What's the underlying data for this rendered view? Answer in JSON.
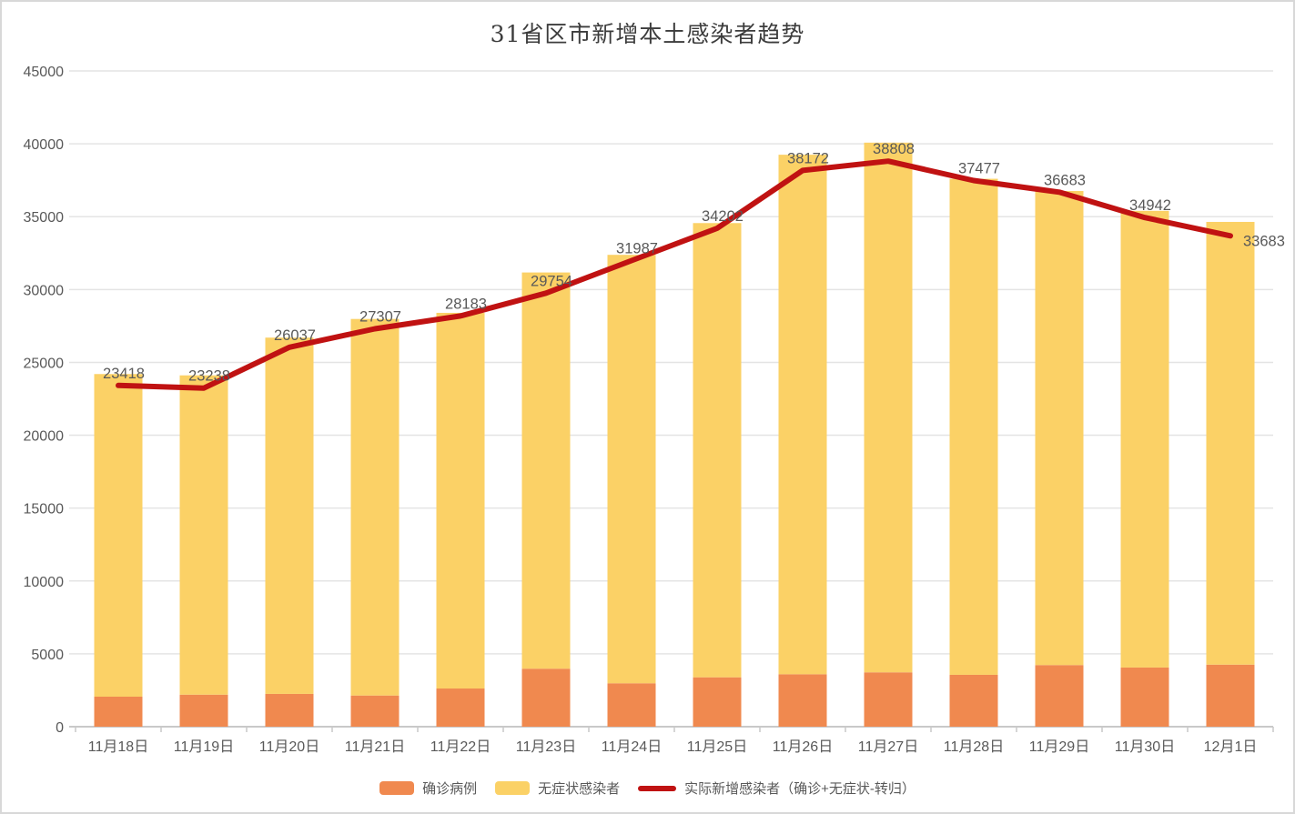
{
  "chart_data": {
    "type": "bar",
    "stacked": true,
    "title": "31省区市新增本土感染者趋势",
    "xlabel": "",
    "ylabel": "",
    "ylim": [
      0,
      45000
    ],
    "y_ticks": [
      0,
      5000,
      10000,
      15000,
      20000,
      25000,
      30000,
      35000,
      40000,
      45000
    ],
    "grid": true,
    "legend_position": "bottom",
    "categories": [
      "11月18日",
      "11月19日",
      "11月20日",
      "11月21日",
      "11月22日",
      "11月23日",
      "11月24日",
      "11月25日",
      "11月26日",
      "11月27日",
      "11月28日",
      "11月29日",
      "11月30日",
      "12月1日"
    ],
    "series": [
      {
        "name": "确诊病例",
        "type": "bar",
        "color": "#F0894F",
        "estimated": true,
        "values": [
          2060,
          2200,
          2250,
          2140,
          2620,
          3980,
          2980,
          3390,
          3600,
          3730,
          3560,
          4230,
          4060,
          4260
        ]
      },
      {
        "name": "无症状感染者",
        "type": "bar",
        "color": "#FBD166",
        "estimated": true,
        "values": [
          22140,
          21910,
          24450,
          25840,
          25780,
          27190,
          29400,
          31170,
          35650,
          36350,
          34040,
          32530,
          31340,
          30380
        ]
      },
      {
        "name": "实际新增感染者（确诊+无症状-转归）",
        "type": "line",
        "color": "#C01212",
        "estimated": false,
        "values": [
          23418,
          23238,
          26037,
          27307,
          28183,
          29754,
          31987,
          34202,
          38172,
          38808,
          37477,
          36683,
          34942,
          33683
        ],
        "data_labels": [
          "23418",
          "23238",
          "26037",
          "27307",
          "28183",
          "29754",
          "31987",
          "34202",
          "38172",
          "38808",
          "37477",
          "36683",
          "34942",
          "33683"
        ]
      }
    ]
  }
}
